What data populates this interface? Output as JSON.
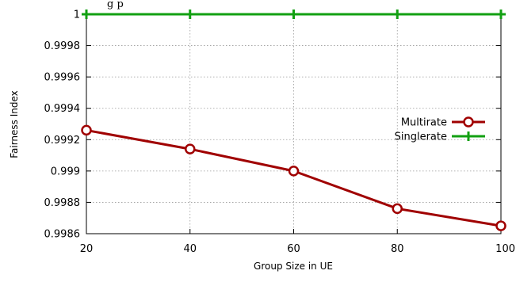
{
  "top_text_fragment": "g  p",
  "chart_data": {
    "type": "line",
    "title": "",
    "xlabel": "Group Size in UE",
    "ylabel": "Fairness Index",
    "x": [
      20,
      40,
      60,
      80,
      100
    ],
    "x_tick_labels": [
      "20",
      "40",
      "60",
      "80",
      "100"
    ],
    "xlim": [
      20,
      100
    ],
    "ylim": [
      0.9986,
      1.0
    ],
    "y_ticks": [
      0.9986,
      0.9988,
      0.999,
      0.9992,
      0.9994,
      0.9996,
      0.9998,
      1.0
    ],
    "y_tick_labels": [
      "0.9986",
      "0.9988",
      "0.999",
      "0.9992",
      "0.9994",
      "0.9996",
      "0.9998",
      "1"
    ],
    "grid": true,
    "legend_position": "right",
    "series": [
      {
        "name": "Multirate",
        "marker": "circle",
        "color": "#a00000",
        "values": [
          0.99926,
          0.99914,
          0.999,
          0.99876,
          0.99865
        ]
      },
      {
        "name": "Singlerate",
        "marker": "plus",
        "color": "#12a012",
        "values": [
          1.0,
          1.0,
          1.0,
          1.0,
          1.0
        ]
      }
    ]
  }
}
